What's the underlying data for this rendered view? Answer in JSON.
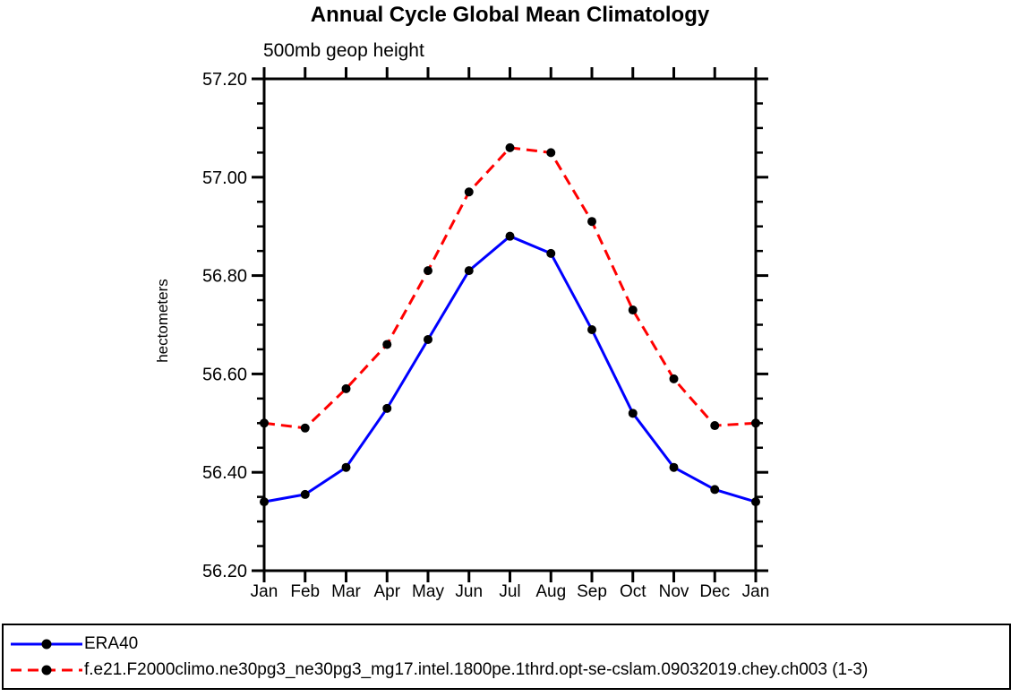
{
  "title": "Annual Cycle Global Mean Climatology",
  "subtitle": "500mb geop height",
  "ylabel": "hectometers",
  "colors": {
    "era40_line": "#0000ff",
    "model_line": "#ff0000",
    "marker": "#000000",
    "axis": "#000000",
    "background": "#ffffff"
  },
  "chart_data": {
    "type": "line",
    "title": "Annual Cycle Global Mean Climatology",
    "subtitle": "500mb geop height",
    "xlabel": "",
    "ylabel": "hectometers",
    "categories": [
      "Jan",
      "Feb",
      "Mar",
      "Apr",
      "May",
      "Jun",
      "Jul",
      "Aug",
      "Sep",
      "Oct",
      "Nov",
      "Dec",
      "Jan"
    ],
    "series": [
      {
        "key": "era40",
        "name": "ERA40",
        "color": "#0000ff",
        "style": "solid",
        "marker": "filled-circle",
        "marker_color": "#000000",
        "values": [
          56.34,
          56.355,
          56.41,
          56.53,
          56.67,
          56.81,
          56.88,
          56.845,
          56.69,
          56.52,
          56.41,
          56.365,
          56.34
        ]
      },
      {
        "key": "model",
        "name": "f.e21.F2000climo.ne30pg3_ne30pg3_mg17.intel.1800pe.1thrd.opt-se-cslam.09032019.chey.ch003 (1-3)",
        "color": "#ff0000",
        "style": "dashed",
        "marker": "filled-circle",
        "marker_color": "#000000",
        "values": [
          56.5,
          56.49,
          56.57,
          56.66,
          56.81,
          56.97,
          57.06,
          57.05,
          56.91,
          56.73,
          56.59,
          56.495,
          56.5
        ]
      }
    ],
    "ylim": [
      56.2,
      57.2
    ],
    "yticks": [
      56.2,
      56.4,
      56.6,
      56.8,
      57.0,
      57.2
    ],
    "ytick_labels": [
      "56.20",
      "56.40",
      "56.60",
      "56.80",
      "57.00",
      "57.20"
    ],
    "y_minor_tick_interval": 0.05,
    "grid": false,
    "legend_position": "bottom"
  }
}
